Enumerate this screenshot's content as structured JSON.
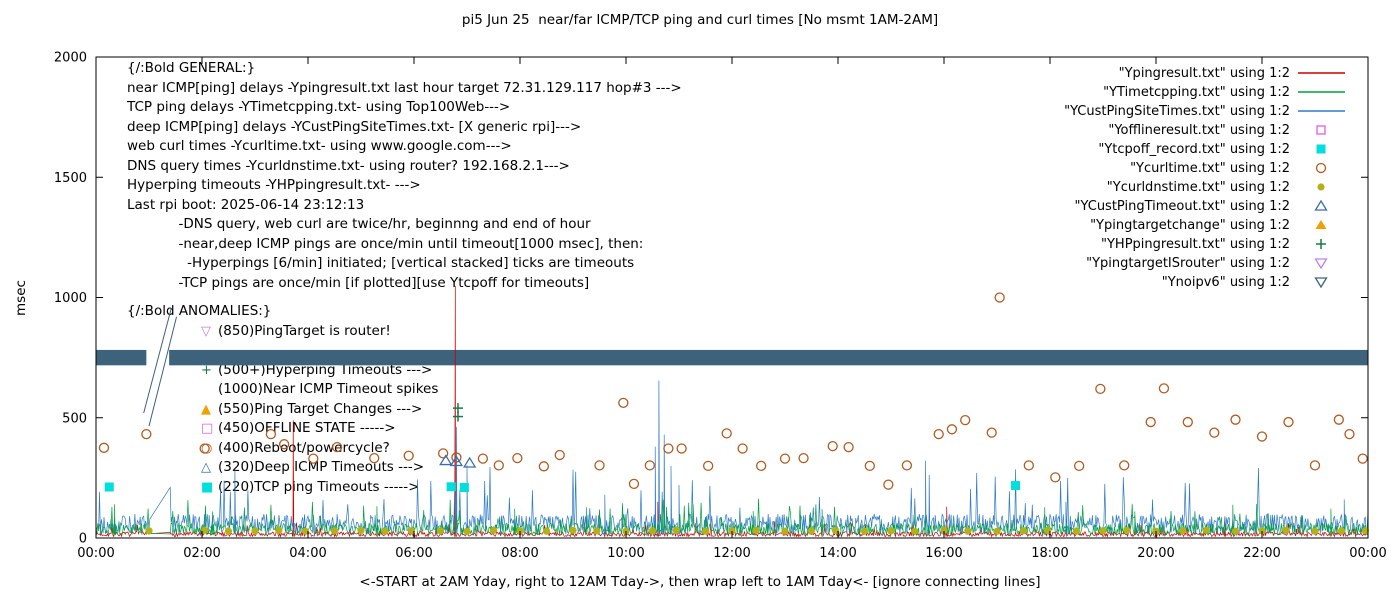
{
  "chart_data": {
    "type": "line+scatter",
    "title": "pi5 Jun 25  near/far ICMP/TCP ping and curl times [No msmt 1AM-2AM]",
    "xlabel": "<-START at 2AM Yday, right to 12AM Tday->, then wrap left to 1AM Tday<- [ignore connecting lines]",
    "ylabel": "msec",
    "ylim": [
      0,
      2000
    ],
    "xlim_hours": [
      0,
      24
    ],
    "grid": false,
    "legend_position": "top-right",
    "gap_hours": [
      1.0,
      1.42
    ],
    "xticks": [
      "00:00",
      "02:00",
      "04:00",
      "06:00",
      "08:00",
      "10:00",
      "12:00",
      "14:00",
      "16:00",
      "18:00",
      "20:00",
      "22:00",
      "00:00"
    ],
    "yticks": [
      [
        "0",
        0
      ],
      [
        "500",
        500
      ],
      [
        "1000",
        1000
      ],
      [
        "1500",
        1500
      ],
      [
        "2000",
        2000
      ]
    ],
    "legend": [
      {
        "label": "\"Ypingresult.txt\" using 1:2",
        "swatch": "line",
        "color": "#cc0000"
      },
      {
        "label": "\"YTimetcpping.txt\" using 1:2",
        "swatch": "line",
        "color": "#00a03c"
      },
      {
        "label": "\"YCustPingSiteTimes.txt\" using 1:2",
        "swatch": "line",
        "color": "#2e7bc4"
      },
      {
        "label": "\"Yofflineresult.txt\" using 1:2",
        "swatch": "square-open",
        "color": "#df5fdf"
      },
      {
        "label": "\"Ytcpoff_record.txt\" using 1:2",
        "swatch": "square-filled",
        "color": "#00dede"
      },
      {
        "label": "\"Ycurltime.txt\" using 1:2",
        "swatch": "circle-open",
        "color": "#b15a20"
      },
      {
        "label": "\"Ycurldnstime.txt\" using 1:2",
        "swatch": "circle-filled",
        "color": "#b2b218"
      },
      {
        "label": "\"YCustPingTimeout.txt\" using 1:2",
        "swatch": "triangle-open",
        "color": "#3a6ea8"
      },
      {
        "label": "\"Ypingtargetchange\" using 1:2",
        "swatch": "triangle-filled",
        "color": "#f0a000"
      },
      {
        "label": "\"YHPpingresult.txt\" using 1:2",
        "swatch": "plus",
        "color": "#167a45"
      },
      {
        "label": "\"YpingtargetISrouter\" using 1:2",
        "swatch": "triangle-down-open",
        "color": "#bf80e6"
      },
      {
        "label": "\"Ynoipv6\" using 1:2",
        "swatch": "triangle-down-open",
        "color": "#3d627c"
      }
    ],
    "band": {
      "series": "Ynoipv6",
      "value_msec": 750,
      "half_width_msec": 32,
      "color": "#3d627c",
      "gap_hours": [
        0.95,
        1.38
      ],
      "connector_lines": [
        [
          0.9,
          520,
          1.42,
          955
        ],
        [
          1.0,
          465,
          1.52,
          920
        ]
      ]
    },
    "noise_series": [
      {
        "name": "Ypingresult.txt",
        "color": "#cc0000",
        "seed": 7,
        "base": 6,
        "amp": 20,
        "spikes": [
          [
            3.72,
            490
          ],
          [
            6.78,
            1048
          ],
          [
            10.6,
            150
          ],
          [
            16.05,
            130
          ],
          [
            21.3,
            90
          ]
        ]
      },
      {
        "name": "YCustPingSiteTimes.txt",
        "color": "#2e7bc4",
        "seed": 29,
        "base": 15,
        "amp": 85,
        "spikes": [
          [
            2.62,
            282
          ],
          [
            6.8,
            462
          ],
          [
            7.0,
            302
          ],
          [
            9.6,
            180
          ],
          [
            10.55,
            380
          ],
          [
            10.62,
            655
          ],
          [
            10.72,
            430
          ],
          [
            10.85,
            300
          ],
          [
            11.0,
            220
          ],
          [
            15.65,
            322
          ],
          [
            15.72,
            262
          ],
          [
            18.3,
            150
          ],
          [
            23.55,
            160
          ]
        ]
      },
      {
        "name": "YTimetcpping.txt",
        "color": "#00a03c",
        "seed": 13,
        "base": 12,
        "amp": 50,
        "spikes": [
          [
            0.35,
            140
          ],
          [
            2.2,
            110
          ],
          [
            5.3,
            132
          ],
          [
            7.9,
            122
          ],
          [
            9.25,
            128
          ],
          [
            12.4,
            112
          ],
          [
            13.7,
            120
          ],
          [
            17.9,
            128
          ],
          [
            19.6,
            110
          ],
          [
            21.45,
            138
          ],
          [
            23.3,
            122
          ]
        ]
      }
    ],
    "scatter_series": [
      {
        "name": "Ycurltime.txt",
        "marker": "circle-open",
        "color": "#b15a20",
        "points": [
          [
            0.15,
            375
          ],
          [
            0.95,
            432
          ],
          [
            2.05,
            372
          ],
          [
            3.3,
            432
          ],
          [
            3.55,
            390
          ],
          [
            4.1,
            330
          ],
          [
            4.55,
            378
          ],
          [
            5.25,
            332
          ],
          [
            5.9,
            342
          ],
          [
            6.55,
            352
          ],
          [
            6.8,
            335
          ],
          [
            7.3,
            330
          ],
          [
            7.6,
            302
          ],
          [
            7.95,
            332
          ],
          [
            8.45,
            298
          ],
          [
            8.75,
            345
          ],
          [
            9.5,
            302
          ],
          [
            9.95,
            562
          ],
          [
            10.15,
            225
          ],
          [
            10.45,
            302
          ],
          [
            10.8,
            372
          ],
          [
            11.05,
            372
          ],
          [
            11.55,
            300
          ],
          [
            11.9,
            435
          ],
          [
            12.2,
            372
          ],
          [
            12.55,
            300
          ],
          [
            13.0,
            330
          ],
          [
            13.35,
            332
          ],
          [
            13.9,
            382
          ],
          [
            14.2,
            378
          ],
          [
            14.6,
            300
          ],
          [
            14.95,
            222
          ],
          [
            15.3,
            302
          ],
          [
            15.9,
            432
          ],
          [
            16.15,
            452
          ],
          [
            16.4,
            490
          ],
          [
            16.9,
            438
          ],
          [
            17.05,
            1000
          ],
          [
            17.6,
            302
          ],
          [
            18.1,
            252
          ],
          [
            18.55,
            300
          ],
          [
            18.95,
            620
          ],
          [
            19.4,
            302
          ],
          [
            19.9,
            482
          ],
          [
            20.15,
            622
          ],
          [
            20.6,
            482
          ],
          [
            21.1,
            438
          ],
          [
            21.5,
            492
          ],
          [
            22.0,
            422
          ],
          [
            22.5,
            482
          ],
          [
            23.0,
            302
          ],
          [
            23.45,
            492
          ],
          [
            23.65,
            432
          ],
          [
            23.9,
            330
          ]
        ]
      },
      {
        "name": "Ycurldnstime.txt",
        "marker": "circle-filled",
        "color": "#b2b218",
        "points": [
          [
            1.0,
            30
          ],
          [
            2.05,
            32
          ],
          [
            2.5,
            28
          ],
          [
            3.0,
            30
          ],
          [
            3.45,
            32
          ],
          [
            3.95,
            28
          ],
          [
            4.5,
            30
          ],
          [
            5.0,
            32
          ],
          [
            5.45,
            28
          ],
          [
            5.95,
            30
          ],
          [
            6.5,
            30
          ],
          [
            7.0,
            28
          ],
          [
            7.5,
            32
          ],
          [
            8.0,
            30
          ],
          [
            8.5,
            28
          ],
          [
            9.0,
            32
          ],
          [
            9.45,
            30
          ],
          [
            10.0,
            28
          ],
          [
            10.5,
            30
          ],
          [
            10.95,
            32
          ],
          [
            11.5,
            28
          ],
          [
            12.0,
            30
          ],
          [
            12.45,
            32
          ],
          [
            13.0,
            28
          ],
          [
            13.5,
            30
          ],
          [
            13.95,
            32
          ],
          [
            14.5,
            28
          ],
          [
            15.0,
            30
          ],
          [
            15.45,
            28
          ],
          [
            16.0,
            32
          ],
          [
            16.45,
            30
          ],
          [
            17.0,
            28
          ],
          [
            17.5,
            30
          ],
          [
            17.95,
            32
          ],
          [
            18.5,
            28
          ],
          [
            19.0,
            30
          ],
          [
            19.45,
            32
          ],
          [
            20.0,
            28
          ],
          [
            20.5,
            30
          ],
          [
            20.95,
            32
          ],
          [
            21.5,
            28
          ],
          [
            22.0,
            30
          ],
          [
            22.45,
            32
          ],
          [
            23.0,
            28
          ],
          [
            23.5,
            30
          ],
          [
            23.95,
            30
          ]
        ]
      },
      {
        "name": "Ytcpoff_record.txt",
        "marker": "square-filled",
        "color": "#00dede",
        "points": [
          [
            0.25,
            212
          ],
          [
            6.7,
            213
          ],
          [
            6.95,
            210
          ],
          [
            17.35,
            218
          ]
        ]
      },
      {
        "name": "YCustPingTimeout.txt",
        "marker": "triangle-open",
        "color": "#3a6ea8",
        "points": [
          [
            6.6,
            322
          ],
          [
            6.8,
            318
          ],
          [
            7.05,
            312
          ]
        ]
      },
      {
        "name": "YHPpingresult.txt",
        "marker": "plus",
        "color": "#167a45",
        "points": [
          [
            6.83,
            505
          ],
          [
            6.83,
            540
          ]
        ]
      },
      {
        "name": "Ypingtargetchange",
        "marker": "triangle-filled",
        "color": "#f0a000",
        "points": []
      },
      {
        "name": "Yofflineresult.txt",
        "marker": "square-open",
        "color": "#df5fdf",
        "points": []
      },
      {
        "name": "YpingtargetISrouter",
        "marker": "triangle-down-open",
        "color": "#bf80e6",
        "points": []
      }
    ],
    "annotations": {
      "general": [
        "{/:Bold GENERAL:}",
        "near ICMP[ping] delays -Ypingresult.txt last hour target 72.31.129.117 hop#3 --->",
        "TCP ping delays -YTimetcpping.txt- using Top100Web--->",
        "deep ICMP[ping] delays -YCustPingSiteTimes.txt- [X generic rpi]--->",
        "web curl times -Ycurltime.txt- using www.google.com--->",
        "DNS query times -Ycurldnstime.txt- using router? 192.168.2.1--->",
        "Hyperping timeouts -YHPpingresult.txt- --->",
        "Last rpi boot: 2025-06-14 23:12:13",
        "            -DNS query, web curl are twice/hr, beginnng and end of hour",
        "            -near,deep ICMP pings are once/min until timeout[1000 msec], then:",
        "              -Hyperpings [6/min] initiated; [vertical stacked] ticks are timeouts",
        "            -TCP pings are once/min [if plotted][use Ytcpoff for timeouts]"
      ],
      "anomalies_header": "{/:Bold ANOMALIES:}",
      "anomalies": [
        {
          "icon": "triangle-down-open",
          "color": "#bf80e6",
          "text": "(850)PingTarget is router!"
        },
        {
          "icon": "none",
          "color": "",
          "text": ""
        },
        {
          "icon": "plus",
          "color": "#167a45",
          "text": "(500+)Hyperping Timeouts --->"
        },
        {
          "icon": "none",
          "color": "",
          "text": "(1000)Near ICMP Timeout spikes"
        },
        {
          "icon": "triangle-filled",
          "color": "#f0a000",
          "text": "(550)Ping Target Changes --->"
        },
        {
          "icon": "square-open",
          "color": "#df5fdf",
          "text": "(450)OFFLINE STATE ----->"
        },
        {
          "icon": "circle-open",
          "color": "#b15a20",
          "text": "(400)Reboot/powercycle?"
        },
        {
          "icon": "triangle-open",
          "color": "#3a6ea8",
          "text": "(320)Deep ICMP Timeouts --->"
        },
        {
          "icon": "square-filled",
          "color": "#00dede",
          "text": "(220)TCP ping Timeouts ----->"
        }
      ]
    }
  }
}
